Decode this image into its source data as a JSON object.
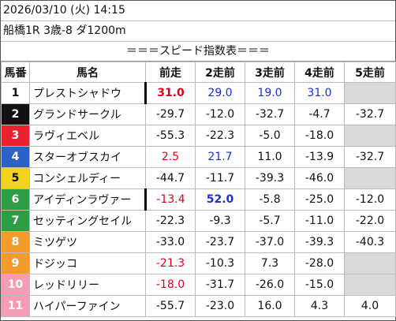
{
  "header": {
    "date": "2026/03/10 (火) 14:15",
    "race": "船橋1R 3歳-8 ダ1200m"
  },
  "table": {
    "title": "＝＝＝スピード指数表＝＝＝",
    "columns": [
      "馬番",
      "馬名",
      "前走",
      "2走前",
      "3走前",
      "4走前",
      "5走前"
    ],
    "rows": [
      [
        "1",
        "プレストシャドウ",
        "31.0",
        "29.0",
        "19.0",
        "31.0",
        null
      ],
      [
        "2",
        "グランドサークル",
        "-29.7",
        "-12.0",
        "-32.7",
        "-4.7",
        "-32.7"
      ],
      [
        "3",
        "ラヴィエベル",
        "-55.3",
        "-22.3",
        "-5.0",
        "-18.0",
        null
      ],
      [
        "4",
        "スターオブスカイ",
        "2.5",
        "21.7",
        "11.0",
        "-13.9",
        "-32.7"
      ],
      [
        "5",
        "コンシェルディー",
        "-44.7",
        "-11.7",
        "-39.3",
        "-46.0",
        null
      ],
      [
        "6",
        "アイディンラヴァー",
        "-13.4",
        "52.0",
        "-5.8",
        "-25.0",
        "-12.0"
      ],
      [
        "7",
        "セッティングセイル",
        "-22.3",
        "-9.3",
        "-5.7",
        "-11.0",
        "-22.0"
      ],
      [
        "8",
        "ミツゲツ",
        "-33.0",
        "-23.7",
        "-37.0",
        "-39.3",
        "-40.3"
      ],
      [
        "9",
        "ドジッコ",
        "-21.3",
        "-10.3",
        "7.3",
        "-28.0",
        null
      ],
      [
        "10",
        "レッドリリー",
        "-18.0",
        "-31.7",
        "-26.0",
        "-15.0",
        null
      ],
      [
        "11",
        "ハイパーファイン",
        "-55.7",
        "-23.0",
        "16.0",
        "4.3",
        "4.0"
      ]
    ]
  }
}
